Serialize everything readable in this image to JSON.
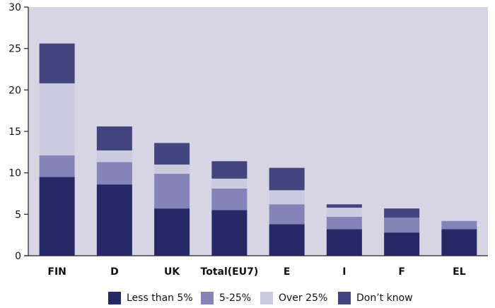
{
  "chart_data": {
    "type": "bar",
    "stacked": true,
    "categories": [
      "FIN",
      "D",
      "UK",
      "Total(EU7)",
      "E",
      "I",
      "F",
      "EL"
    ],
    "series": [
      {
        "name": "Less than 5%",
        "color": "#272967",
        "values": [
          9.5,
          8.6,
          5.7,
          5.5,
          3.8,
          3.2,
          2.8,
          3.2
        ]
      },
      {
        "name": "5-25%",
        "color": "#8584b8",
        "values": [
          2.6,
          2.7,
          4.2,
          2.6,
          2.4,
          1.5,
          1.8,
          1.0
        ]
      },
      {
        "name": "Over 25%",
        "color": "#cccadf",
        "values": [
          8.7,
          1.4,
          1.1,
          1.2,
          1.7,
          1.1,
          0.0,
          0.0
        ]
      },
      {
        "name": "Don’t know",
        "color": "#43457f",
        "values": [
          4.8,
          2.9,
          2.6,
          2.1,
          2.7,
          0.4,
          1.1,
          0.0
        ]
      }
    ],
    "ylim": [
      0,
      30
    ],
    "yticks": [
      0,
      5,
      10,
      15,
      20,
      25,
      30
    ],
    "grid": false,
    "legend_position": "bottom",
    "plot_background": "#d7d4e4"
  }
}
